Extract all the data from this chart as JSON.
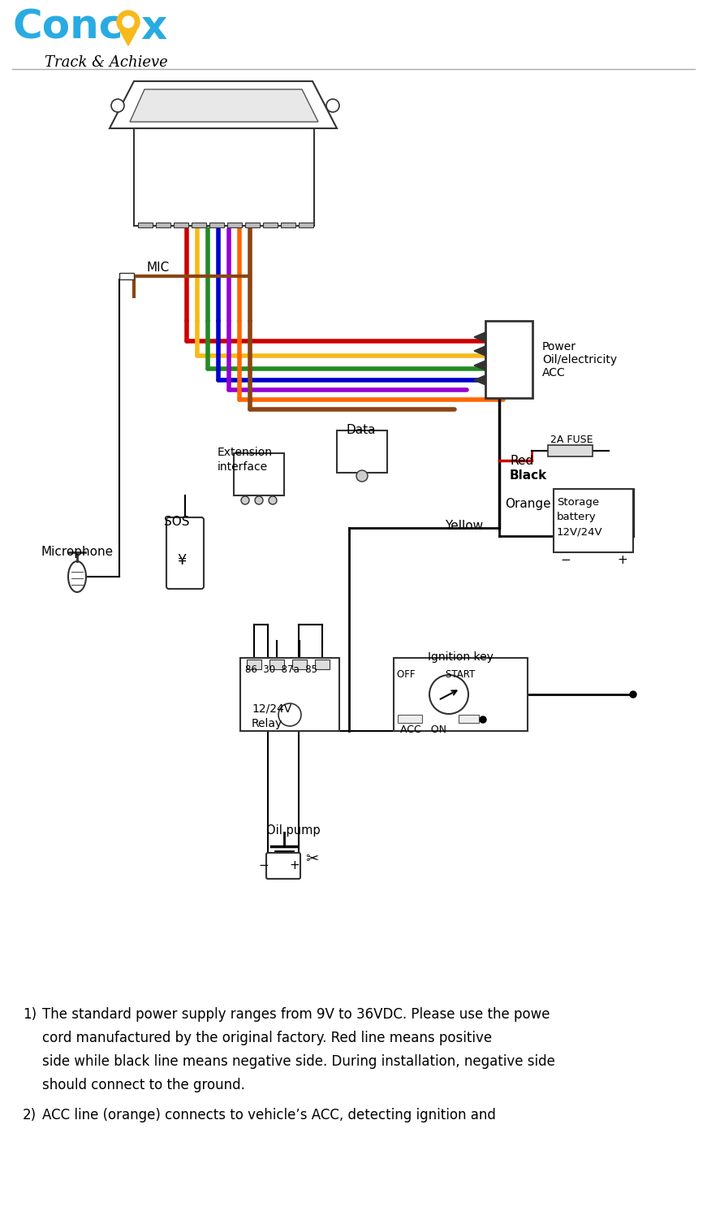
{
  "bg_color": "#ffffff",
  "fig_width": 8.71,
  "fig_height": 15.07,
  "logo_cyan": "#29abe2",
  "logo_yellow": "#f7b91b",
  "logo_black": "#000000",
  "logo_tagline": "Track & Achieve",
  "labels": {
    "MIC": "MIC",
    "Microphone": "Microphone",
    "SOS": "SOS",
    "Extension_interface": "Extension\ninterface",
    "Data": "Data",
    "Power": "Power\nOil/electricity\nACC",
    "Red": "Red",
    "Black": "Black",
    "Yellow": "Yellow",
    "Orange": "Orange",
    "Fuse": "2A FUSE",
    "Storage": "Storage\nbattery\n12V/24V",
    "Relay": "12/24V\nRelay",
    "Relay_pins": "86  30  87a  85",
    "Ignition": "Ignition key",
    "Oil_pump": "Oil pump",
    "ACC_ON": "ACC   ON",
    "OFF_START": "OFF          START"
  },
  "desc_line1_num": "1)",
  "desc_line1_text": "The standard power supply ranges from 9V to 36VDC. Please use the powe",
  "desc_line2_text": "cord manufactured by the original factory. Red line means positive",
  "desc_line3_text": "side while black line means negative side. During installation, negative side",
  "desc_line4_text": "should connect to the ground.",
  "desc_line5_num": "2)",
  "desc_line5_text": "ACC line (orange) connects to vehicle’s ACC, detecting ignition and"
}
